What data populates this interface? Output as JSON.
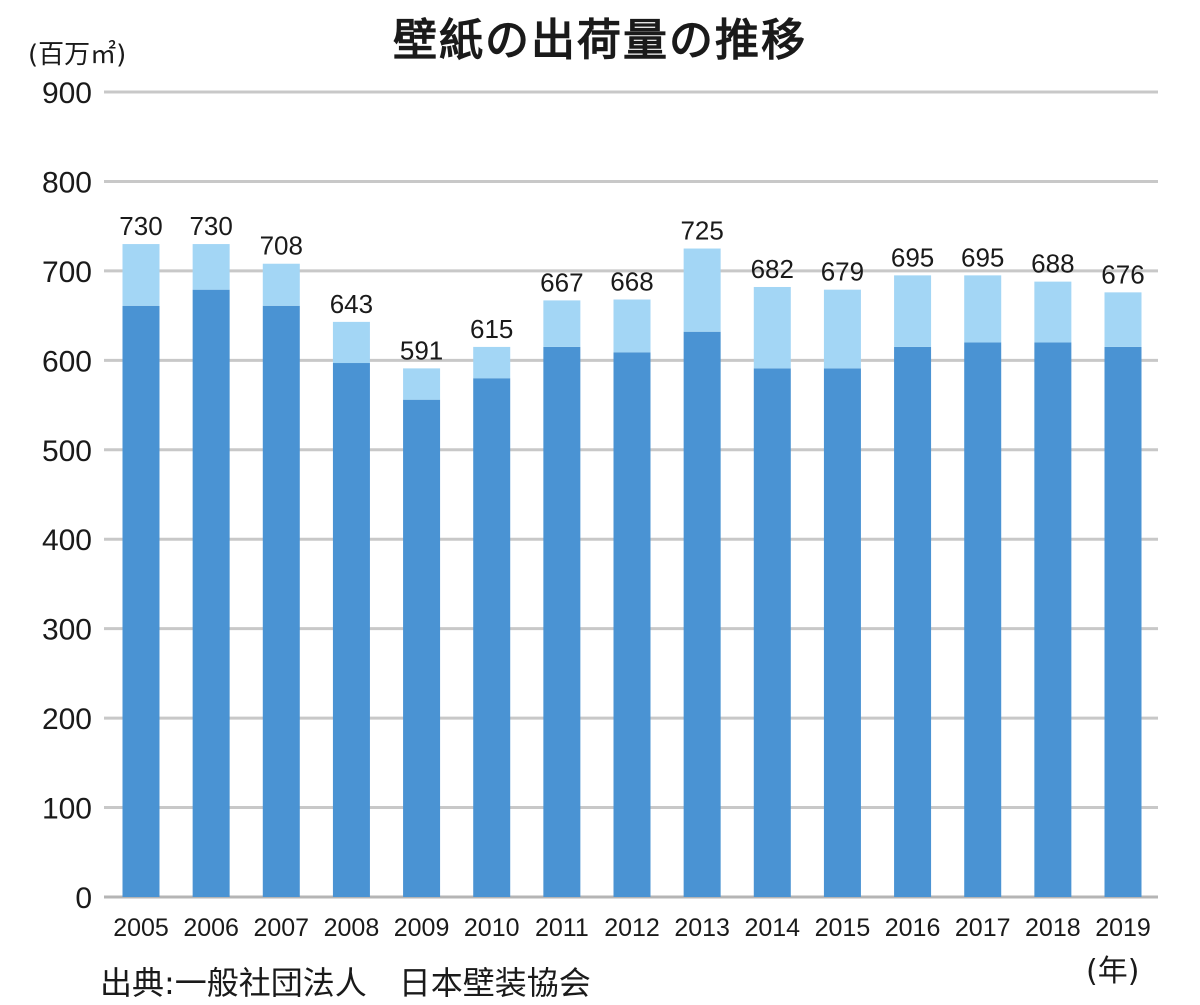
{
  "chart_data": {
    "type": "bar",
    "stacked": true,
    "title": "壁紙の出荷量の推移",
    "ylabel": "(百万㎡)",
    "xlabel": "(年)",
    "source": "出典:一般社団法人　日本壁装協会",
    "ylim": [
      0,
      900
    ],
    "yticks": [
      0,
      100,
      200,
      300,
      400,
      500,
      600,
      700,
      800,
      900
    ],
    "grid": true,
    "categories": [
      "2005",
      "2006",
      "2007",
      "2008",
      "2009",
      "2010",
      "2011",
      "2012",
      "2013",
      "2014",
      "2015",
      "2016",
      "2017",
      "2018",
      "2019"
    ],
    "series": [
      {
        "values": [
          661,
          679,
          661,
          597,
          556,
          580,
          615,
          609,
          632,
          591,
          591,
          615,
          620,
          620,
          615
        ],
        "color": "#4a93d3"
      },
      {
        "values": [
          69,
          51,
          47,
          46,
          35,
          35,
          52,
          59,
          93,
          91,
          88,
          80,
          75,
          68,
          61
        ],
        "color": "#a3d6f5"
      }
    ],
    "totals": [
      730,
      730,
      708,
      643,
      591,
      615,
      667,
      668,
      725,
      682,
      679,
      695,
      695,
      688,
      676
    ]
  }
}
